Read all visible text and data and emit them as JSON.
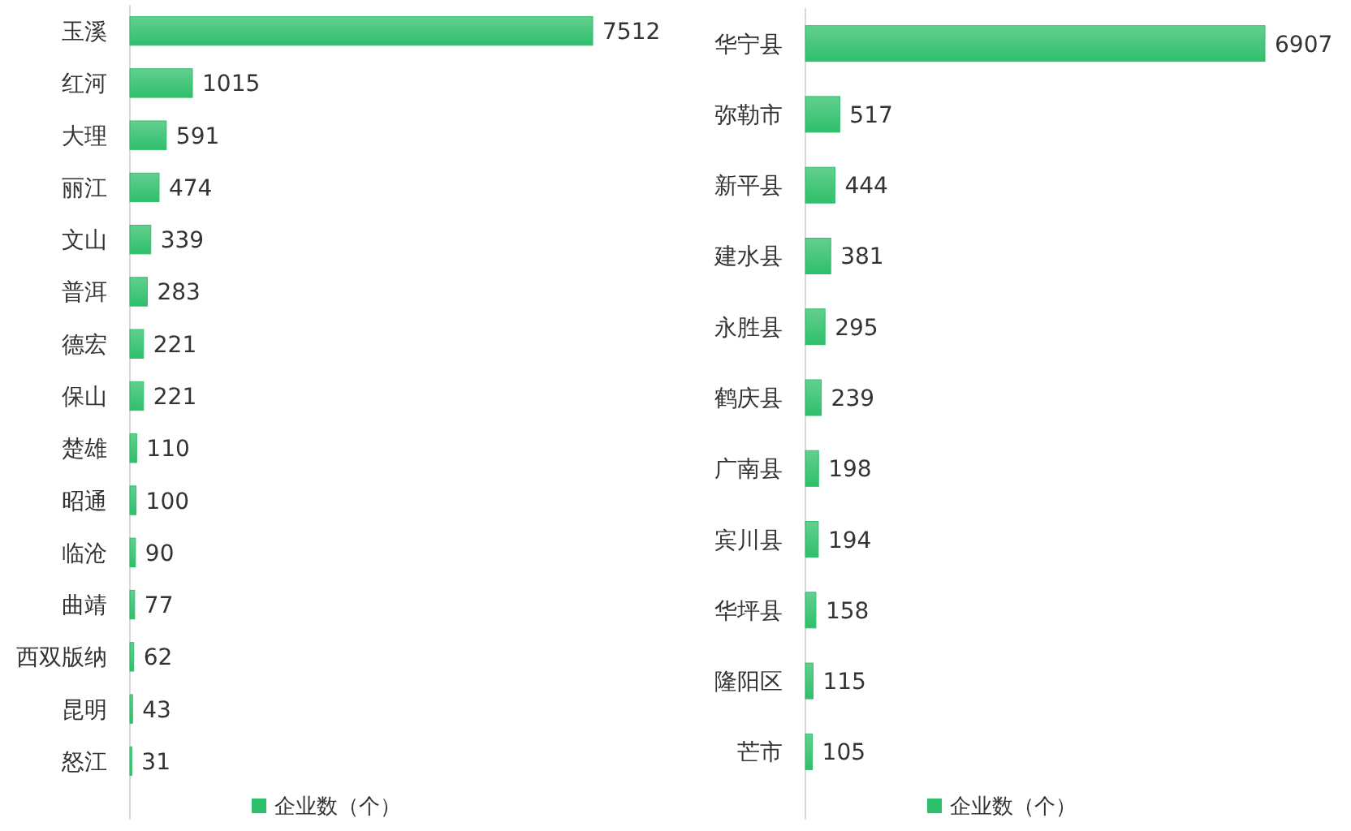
{
  "chart_data": [
    {
      "type": "bar",
      "orientation": "horizontal",
      "categories": [
        "玉溪",
        "红河",
        "大理",
        "丽江",
        "文山",
        "普洱",
        "德宏",
        "保山",
        "楚雄",
        "昭通",
        "临沧",
        "曲靖",
        "西双版纳",
        "昆明",
        "怒江"
      ],
      "series": [
        {
          "name": "企业数（个）",
          "color": "#2fbf6b",
          "values": [
            7512,
            1015,
            591,
            474,
            339,
            283,
            221,
            221,
            110,
            100,
            90,
            77,
            62,
            43,
            31
          ]
        }
      ],
      "data_labels": true,
      "legend": "bottom",
      "grid": false
    },
    {
      "type": "bar",
      "orientation": "horizontal",
      "categories": [
        "华宁县",
        "弥勒市",
        "新平县",
        "建水县",
        "永胜县",
        "鹤庆县",
        "广南县",
        "宾川县",
        "华坪县",
        "隆阳区",
        "芒市"
      ],
      "series": [
        {
          "name": "企业数（个）",
          "color": "#2fbf6b",
          "values": [
            6907,
            517,
            444,
            381,
            295,
            239,
            198,
            194,
            158,
            115,
            105
          ]
        }
      ],
      "data_labels": true,
      "legend": "bottom",
      "grid": false
    }
  ]
}
